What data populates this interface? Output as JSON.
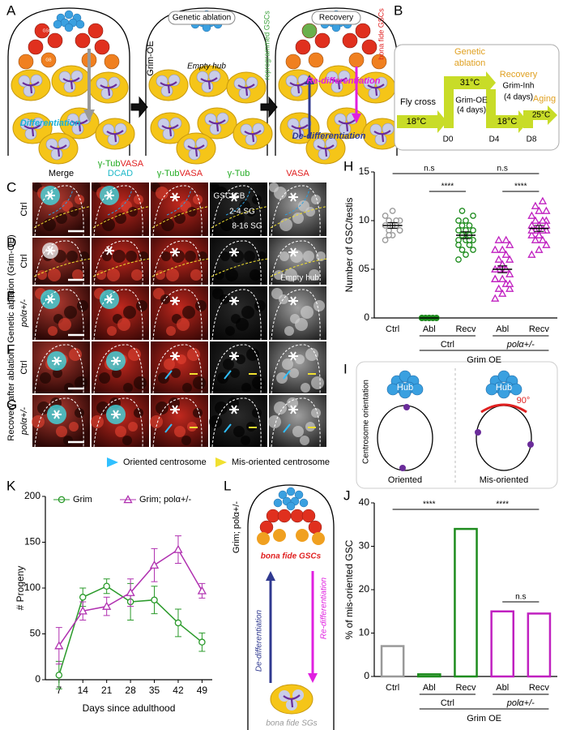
{
  "panel_labels": [
    "A",
    "B",
    "C",
    "D",
    "E",
    "F",
    "G",
    "H",
    "I",
    "J",
    "K",
    "L"
  ],
  "schematic_a": {
    "ablation": "Genetic ablation",
    "recovery": "Recovery",
    "grim_oe": "Grim-OE",
    "empty_hub": "Empty hub",
    "reprogrammed": "reprogrammed GSCs",
    "bona_fide": "bona fide GSCs",
    "gsc": "GSC",
    "gb": "GB",
    "differentiation": "Differentiation",
    "re_differentiation": "Re-differentiation",
    "de_differentiation": "De-differentiation"
  },
  "timeline_b": {
    "fly_cross": "Fly cross",
    "temp_cross": "18°C",
    "ablation_1": "Genetic",
    "ablation_2": "ablation",
    "temp_ablation": "31°C",
    "grim_oe": "Grim-OE",
    "ablation_days": "(4 days)",
    "d0": "D0",
    "recovery": "Recovery",
    "grim_inh": "Grim-Inh",
    "recovery_days": "(4 days)",
    "temp_recovery": "18°C",
    "d4": "D4",
    "aging": "Aging",
    "temp_aging": "25°C",
    "d8": "D8"
  },
  "microscopy": {
    "columns": [
      [
        "Merge"
      ],
      [
        "γ-Tub",
        "VASA",
        "DCAD"
      ],
      [
        "γ-Tub",
        "VASA"
      ],
      [
        "γ-Tub"
      ],
      [
        "VASA"
      ]
    ],
    "label_colors": {
      "Merge": "#000000",
      "γ-Tub": "#22aa22",
      "VASA": "#e02020",
      "DCAD": "#1cb8c8"
    },
    "rows": [
      "Ctrl",
      "Ctrl",
      "polα+/-",
      "Ctrl",
      "polα+/-"
    ],
    "groups": [
      "Genetic ablation (Grim-OE)",
      "Recovery after ablation"
    ],
    "zones": [
      "GSC/GB",
      "2-4 SG",
      "8-16 SG"
    ],
    "empty_hub": "Empty hub"
  },
  "legend": [
    "Oriented centrosome",
    "Mis-oriented centrosome"
  ],
  "schematic_i": {
    "title": "Centrosome orientation",
    "hub_left": "Hub",
    "hub_right": "Hub",
    "angle": "90°",
    "oriented": "Oriented",
    "mis_oriented": "Mis-oriented"
  },
  "schematic_l": {
    "genotype": "Grim; polα+/-",
    "gscs": "bona fide GSCs",
    "de_differentiation": "De-differentiation",
    "re_differentiation": "Re-differentiation",
    "sgs": "bona fide SGs"
  },
  "chart_data": [
    {
      "type": "strip",
      "ylabel": "Number of GSC/testis",
      "categories": [
        "Ctrl",
        "Abl",
        "Recv",
        "Abl",
        "Recv"
      ],
      "groups": [
        "Ctrl",
        "polα+/-"
      ],
      "supergroup": "Grim OE",
      "colors": [
        "#999999",
        "#1e8c1e",
        "#1e8c1e",
        "#c020c0",
        "#c020c0"
      ],
      "markers": [
        "circle",
        "circle",
        "circle",
        "triangle",
        "triangle"
      ],
      "points": [
        [
          8,
          8.5,
          9,
          9,
          9.5,
          9.5,
          9.5,
          10,
          10,
          10,
          10.5,
          11,
          9,
          8.5
        ],
        [
          0,
          0,
          0,
          0,
          0,
          0,
          0,
          0,
          0,
          0,
          0,
          0
        ],
        [
          6,
          6.5,
          7,
          7,
          7.5,
          8,
          8,
          8,
          8.5,
          8.5,
          9,
          9,
          9,
          9.5,
          9.5,
          10,
          10,
          10.5,
          11,
          8,
          7.5
        ],
        [
          2,
          2.5,
          3,
          3,
          3.5,
          4,
          4,
          4.5,
          5,
          5,
          5,
          5.5,
          6,
          6,
          6.5,
          7,
          7,
          7.5,
          8,
          8,
          4,
          5.5,
          3.5
        ],
        [
          6.5,
          7,
          7.5,
          8,
          8,
          8.5,
          8.5,
          9,
          9,
          9,
          9.5,
          9.5,
          10,
          10,
          10,
          10.5,
          11,
          11,
          11.5,
          12,
          9,
          8.5,
          9.5
        ]
      ],
      "means": [
        9.5,
        0,
        8.5,
        5,
        9.2
      ],
      "errors": [
        0.3,
        0,
        0.35,
        0.35,
        0.3
      ],
      "ylim": [
        0,
        15
      ],
      "yticks": [
        0,
        {
          "value": 5,
          "label": "05"
        },
        10,
        15
      ],
      "significance": [
        "n.s",
        "****",
        "n.s",
        "****"
      ]
    },
    {
      "type": "bar",
      "ylabel": "% of mis-oriented GSC",
      "categories": [
        "Ctrl",
        "Abl",
        "Recv",
        "Abl",
        "Recv"
      ],
      "groups": [
        "Ctrl",
        "polα+/-"
      ],
      "supergroup": "Grim OE",
      "colors": [
        "#999999",
        "#1e8c1e",
        "#1e8c1e",
        "#c020c0",
        "#c020c0"
      ],
      "values": [
        7,
        0.5,
        34,
        15,
        14.5
      ],
      "ylim": [
        0,
        40
      ],
      "yticks": [
        0,
        10,
        20,
        30,
        40
      ],
      "significance": [
        "****",
        "****",
        "n.s"
      ]
    },
    {
      "type": "line",
      "xlabel": "Days since adulthood",
      "ylabel": "# Progeny",
      "x": [
        7,
        14,
        21,
        28,
        35,
        42,
        49
      ],
      "series": [
        {
          "name": "Grim",
          "color": "#2a9a2a",
          "marker": "circle",
          "values": [
            5,
            90,
            102,
            85,
            87,
            62,
            41
          ],
          "errors": [
            15,
            10,
            8,
            20,
            15,
            15,
            10
          ]
        },
        {
          "name": "Grim; polα+/-",
          "color": "#b030b0",
          "marker": "triangle",
          "values": [
            37,
            75,
            80,
            95,
            125,
            142,
            97
          ],
          "errors": [
            20,
            10,
            10,
            15,
            18,
            15,
            8
          ]
        }
      ],
      "xlim": [
        3,
        52
      ],
      "xticks": [
        7,
        14,
        21,
        28,
        35,
        42,
        49
      ],
      "ylim": [
        0,
        200
      ],
      "yticks": [
        0,
        50,
        100,
        150,
        200
      ]
    }
  ]
}
